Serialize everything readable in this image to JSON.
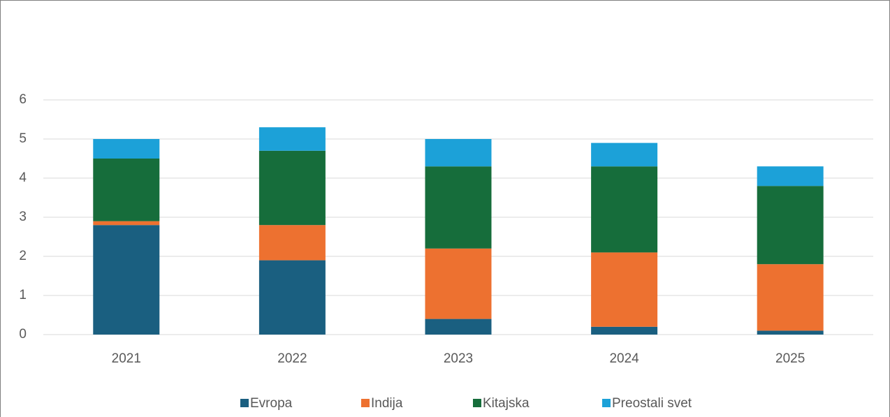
{
  "chart_data": {
    "type": "stacked_bar",
    "categories": [
      "2021",
      "2022",
      "2023",
      "2024",
      "2025"
    ],
    "series": [
      {
        "name": "Evropa",
        "color": "#1a5f80",
        "values": [
          2.8,
          1.9,
          0.4,
          0.2,
          0.1
        ]
      },
      {
        "name": "Indija",
        "color": "#ed7130",
        "values": [
          0.1,
          0.9,
          1.8,
          1.9,
          1.7
        ]
      },
      {
        "name": "Kitajska",
        "color": "#166d3b",
        "values": [
          1.6,
          1.9,
          2.1,
          2.2,
          2.0
        ]
      },
      {
        "name": "Preostali svet",
        "color": "#1ca1d8",
        "values": [
          0.5,
          0.6,
          0.7,
          0.6,
          0.5
        ]
      }
    ],
    "ylim": [
      0,
      6
    ],
    "yticks": [
      0,
      1,
      2,
      3,
      4,
      5,
      6
    ],
    "grid": true,
    "legend": "bottom"
  }
}
